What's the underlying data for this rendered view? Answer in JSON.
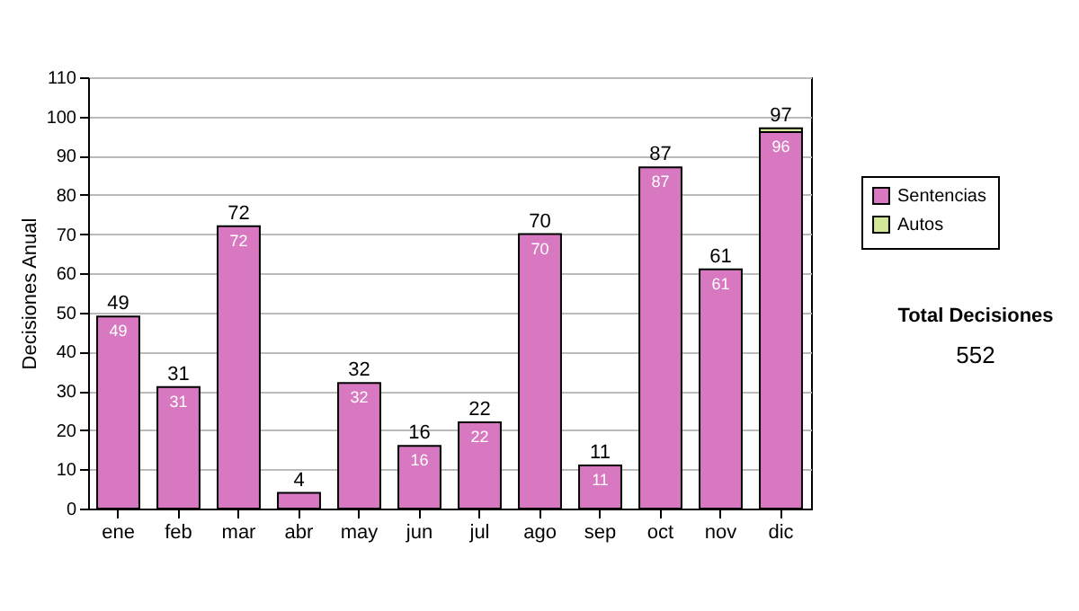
{
  "chart_data": {
    "type": "bar",
    "stacked": true,
    "ylabel": "Decisiones Anual",
    "categories": [
      "ene",
      "feb",
      "mar",
      "abr",
      "may",
      "jun",
      "jul",
      "ago",
      "sep",
      "oct",
      "nov",
      "dic"
    ],
    "series": [
      {
        "name": "Sentencias",
        "color": "#d778c0",
        "values": [
          49,
          31,
          72,
          4,
          32,
          16,
          22,
          70,
          11,
          87,
          61,
          96
        ],
        "value_labels": [
          "49",
          "31",
          "72",
          null,
          "32",
          "16",
          "22",
          "70",
          "11",
          "87",
          "61",
          "96"
        ]
      },
      {
        "name": "Autos",
        "color": "#d4e89a",
        "values": [
          0,
          0,
          0,
          0,
          0,
          0,
          0,
          0,
          0,
          0,
          0,
          1
        ]
      }
    ],
    "totals": [
      "49",
      "31",
      "72",
      "4",
      "32",
      "16",
      "22",
      "70",
      "11",
      "87",
      "61",
      "97"
    ],
    "ylim": [
      0,
      110
    ],
    "yticks": [
      0,
      10,
      20,
      30,
      40,
      50,
      60,
      70,
      80,
      90,
      100,
      110
    ],
    "grid": "y",
    "legend": "right",
    "annotations": [
      "Total Decisiones",
      "552"
    ]
  }
}
